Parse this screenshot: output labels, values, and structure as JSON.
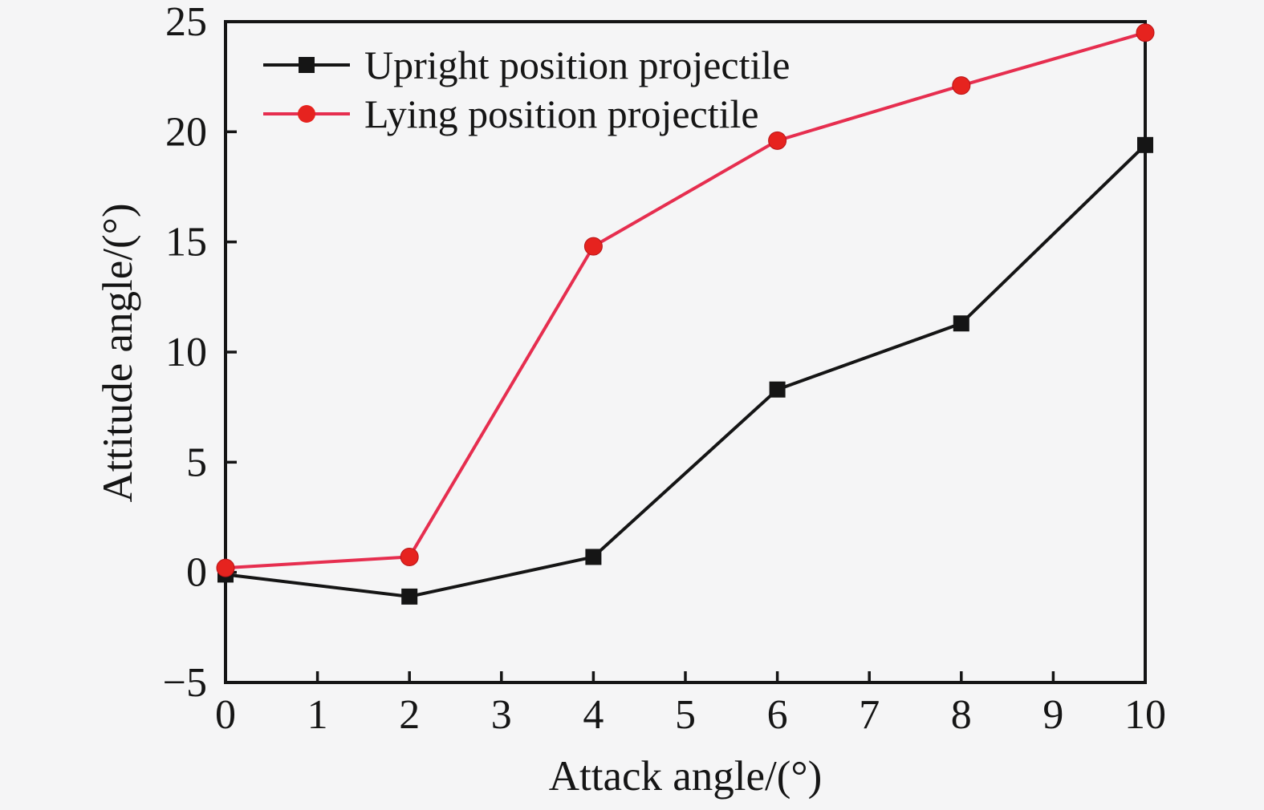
{
  "chart_data": {
    "type": "line",
    "title": "",
    "xlabel": "Attack angle/(°)",
    "ylabel": "Attitude angle/(°)",
    "xlim": [
      0,
      10
    ],
    "ylim": [
      -5,
      25
    ],
    "grid": false,
    "legend_position": "upper-left",
    "x_ticks": [
      0,
      1,
      2,
      3,
      4,
      5,
      6,
      7,
      8,
      9,
      10
    ],
    "x_tick_labels": [
      "0",
      "1",
      "2",
      "3",
      "4",
      "5",
      "6",
      "7",
      "8",
      "9",
      "10"
    ],
    "y_ticks": [
      -5,
      0,
      5,
      10,
      15,
      20,
      25
    ],
    "y_tick_labels": [
      "−5",
      "0",
      "5",
      "10",
      "15",
      "20",
      "25"
    ],
    "x": [
      0,
      2,
      4,
      6,
      8,
      10
    ],
    "series": [
      {
        "name": "Upright position projectile",
        "marker": "square",
        "color": "#151515",
        "marker_color": "#151515",
        "values": [
          -0.1,
          -1.1,
          0.7,
          8.3,
          11.3,
          19.4
        ]
      },
      {
        "name": "Lying position projectile",
        "marker": "circle",
        "color": "#e62e4f",
        "marker_color": "#e6231f",
        "values": [
          0.2,
          0.7,
          14.8,
          19.6,
          22.1,
          24.5
        ]
      }
    ]
  },
  "colors": {
    "background": "#f5f5f6",
    "axis": "#151515"
  }
}
